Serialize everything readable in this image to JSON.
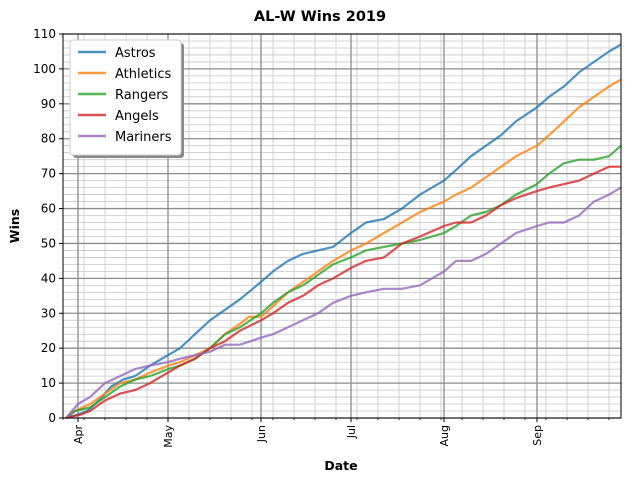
{
  "chart_data": {
    "type": "line",
    "title": "AL-W Wins 2019",
    "xlabel": "Date",
    "ylabel": "Wins",
    "x_axis_type": "date",
    "xlim": [
      "2019-03-27",
      "2019-09-29"
    ],
    "ylim": [
      0,
      110
    ],
    "y_ticks": [
      0,
      10,
      20,
      30,
      40,
      50,
      60,
      70,
      80,
      90,
      100,
      110
    ],
    "x_ticks": [
      {
        "label": "Apr",
        "date": "2019-04-01"
      },
      {
        "label": "May",
        "date": "2019-05-01"
      },
      {
        "label": "Jun",
        "date": "2019-06-01"
      },
      {
        "label": "Jul",
        "date": "2019-07-01"
      },
      {
        "label": "Aug",
        "date": "2019-08-01"
      },
      {
        "label": "Sep",
        "date": "2019-09-01"
      }
    ],
    "grid": true,
    "legend": "top-left",
    "series": [
      {
        "name": "Astros",
        "color": "#1f77b4",
        "points": [
          [
            "2019-03-28",
            0
          ],
          [
            "2019-04-01",
            1
          ],
          [
            "2019-04-04",
            2
          ],
          [
            "2019-04-08",
            5
          ],
          [
            "2019-04-12",
            9
          ],
          [
            "2019-04-16",
            11
          ],
          [
            "2019-04-20",
            12
          ],
          [
            "2019-04-25",
            15
          ],
          [
            "2019-05-01",
            18
          ],
          [
            "2019-05-05",
            20
          ],
          [
            "2019-05-10",
            24
          ],
          [
            "2019-05-15",
            28
          ],
          [
            "2019-05-20",
            31
          ],
          [
            "2019-05-25",
            34
          ],
          [
            "2019-06-01",
            39
          ],
          [
            "2019-06-05",
            42
          ],
          [
            "2019-06-10",
            45
          ],
          [
            "2019-06-15",
            47
          ],
          [
            "2019-06-20",
            48
          ],
          [
            "2019-06-25",
            49
          ],
          [
            "2019-07-01",
            53
          ],
          [
            "2019-07-06",
            56
          ],
          [
            "2019-07-12",
            57
          ],
          [
            "2019-07-18",
            60
          ],
          [
            "2019-07-24",
            64
          ],
          [
            "2019-08-01",
            68
          ],
          [
            "2019-08-05",
            71
          ],
          [
            "2019-08-10",
            75
          ],
          [
            "2019-08-15",
            78
          ],
          [
            "2019-08-20",
            81
          ],
          [
            "2019-08-25",
            85
          ],
          [
            "2019-09-01",
            89
          ],
          [
            "2019-09-05",
            92
          ],
          [
            "2019-09-10",
            95
          ],
          [
            "2019-09-15",
            99
          ],
          [
            "2019-09-20",
            102
          ],
          [
            "2019-09-25",
            105
          ],
          [
            "2019-09-29",
            107
          ]
        ]
      },
      {
        "name": "Athletics",
        "color": "#ff7f0e",
        "points": [
          [
            "2019-03-28",
            0
          ],
          [
            "2019-03-31",
            2
          ],
          [
            "2019-04-05",
            4
          ],
          [
            "2019-04-10",
            7
          ],
          [
            "2019-04-15",
            10
          ],
          [
            "2019-04-20",
            11
          ],
          [
            "2019-04-25",
            13
          ],
          [
            "2019-05-01",
            15
          ],
          [
            "2019-05-05",
            16
          ],
          [
            "2019-05-10",
            18
          ],
          [
            "2019-05-15",
            20
          ],
          [
            "2019-05-20",
            24
          ],
          [
            "2019-05-25",
            27
          ],
          [
            "2019-05-28",
            29
          ],
          [
            "2019-06-01",
            29
          ],
          [
            "2019-06-05",
            32
          ],
          [
            "2019-06-10",
            36
          ],
          [
            "2019-06-15",
            39
          ],
          [
            "2019-06-20",
            42
          ],
          [
            "2019-06-25",
            45
          ],
          [
            "2019-07-01",
            48
          ],
          [
            "2019-07-06",
            50
          ],
          [
            "2019-07-12",
            53
          ],
          [
            "2019-07-18",
            56
          ],
          [
            "2019-07-24",
            59
          ],
          [
            "2019-08-01",
            62
          ],
          [
            "2019-08-05",
            64
          ],
          [
            "2019-08-10",
            66
          ],
          [
            "2019-08-15",
            69
          ],
          [
            "2019-08-20",
            72
          ],
          [
            "2019-08-25",
            75
          ],
          [
            "2019-09-01",
            78
          ],
          [
            "2019-09-05",
            81
          ],
          [
            "2019-09-10",
            85
          ],
          [
            "2019-09-15",
            89
          ],
          [
            "2019-09-20",
            92
          ],
          [
            "2019-09-25",
            95
          ],
          [
            "2019-09-29",
            97
          ]
        ]
      },
      {
        "name": "Rangers",
        "color": "#2ca02c",
        "points": [
          [
            "2019-03-28",
            0
          ],
          [
            "2019-03-31",
            2
          ],
          [
            "2019-04-05",
            3
          ],
          [
            "2019-04-10",
            6
          ],
          [
            "2019-04-15",
            9
          ],
          [
            "2019-04-20",
            11
          ],
          [
            "2019-04-25",
            12
          ],
          [
            "2019-05-01",
            14
          ],
          [
            "2019-05-05",
            15
          ],
          [
            "2019-05-10",
            17
          ],
          [
            "2019-05-15",
            20
          ],
          [
            "2019-05-20",
            24
          ],
          [
            "2019-05-25",
            26
          ],
          [
            "2019-06-01",
            30
          ],
          [
            "2019-06-05",
            33
          ],
          [
            "2019-06-10",
            36
          ],
          [
            "2019-06-15",
            38
          ],
          [
            "2019-06-20",
            41
          ],
          [
            "2019-06-25",
            44
          ],
          [
            "2019-07-01",
            46
          ],
          [
            "2019-07-06",
            48
          ],
          [
            "2019-07-12",
            49
          ],
          [
            "2019-07-18",
            50
          ],
          [
            "2019-07-24",
            51
          ],
          [
            "2019-08-01",
            53
          ],
          [
            "2019-08-05",
            55
          ],
          [
            "2019-08-10",
            58
          ],
          [
            "2019-08-15",
            59
          ],
          [
            "2019-08-20",
            61
          ],
          [
            "2019-08-25",
            64
          ],
          [
            "2019-09-01",
            67
          ],
          [
            "2019-09-05",
            70
          ],
          [
            "2019-09-10",
            73
          ],
          [
            "2019-09-15",
            74
          ],
          [
            "2019-09-20",
            74
          ],
          [
            "2019-09-25",
            75
          ],
          [
            "2019-09-29",
            78
          ]
        ]
      },
      {
        "name": "Angels",
        "color": "#d62728",
        "points": [
          [
            "2019-03-28",
            0
          ],
          [
            "2019-04-02",
            1
          ],
          [
            "2019-04-05",
            2
          ],
          [
            "2019-04-10",
            5
          ],
          [
            "2019-04-15",
            7
          ],
          [
            "2019-04-20",
            8
          ],
          [
            "2019-04-25",
            10
          ],
          [
            "2019-05-01",
            13
          ],
          [
            "2019-05-05",
            15
          ],
          [
            "2019-05-10",
            17
          ],
          [
            "2019-05-15",
            20
          ],
          [
            "2019-05-20",
            22
          ],
          [
            "2019-05-25",
            25
          ],
          [
            "2019-06-01",
            28
          ],
          [
            "2019-06-05",
            30
          ],
          [
            "2019-06-10",
            33
          ],
          [
            "2019-06-15",
            35
          ],
          [
            "2019-06-20",
            38
          ],
          [
            "2019-06-25",
            40
          ],
          [
            "2019-07-01",
            43
          ],
          [
            "2019-07-06",
            45
          ],
          [
            "2019-07-12",
            46
          ],
          [
            "2019-07-18",
            50
          ],
          [
            "2019-07-24",
            52
          ],
          [
            "2019-08-01",
            55
          ],
          [
            "2019-08-05",
            56
          ],
          [
            "2019-08-10",
            56
          ],
          [
            "2019-08-15",
            58
          ],
          [
            "2019-08-20",
            61
          ],
          [
            "2019-08-25",
            63
          ],
          [
            "2019-09-01",
            65
          ],
          [
            "2019-09-05",
            66
          ],
          [
            "2019-09-10",
            67
          ],
          [
            "2019-09-15",
            68
          ],
          [
            "2019-09-20",
            70
          ],
          [
            "2019-09-25",
            72
          ],
          [
            "2019-09-29",
            72
          ]
        ]
      },
      {
        "name": "Mariners",
        "color": "#9467bd",
        "points": [
          [
            "2019-03-28",
            0
          ],
          [
            "2019-03-30",
            2
          ],
          [
            "2019-04-01",
            4
          ],
          [
            "2019-04-05",
            6
          ],
          [
            "2019-04-10",
            10
          ],
          [
            "2019-04-15",
            12
          ],
          [
            "2019-04-20",
            14
          ],
          [
            "2019-04-25",
            15
          ],
          [
            "2019-05-01",
            16
          ],
          [
            "2019-05-05",
            17
          ],
          [
            "2019-05-10",
            18
          ],
          [
            "2019-05-15",
            19
          ],
          [
            "2019-05-20",
            21
          ],
          [
            "2019-05-25",
            21
          ],
          [
            "2019-06-01",
            23
          ],
          [
            "2019-06-05",
            24
          ],
          [
            "2019-06-10",
            26
          ],
          [
            "2019-06-15",
            28
          ],
          [
            "2019-06-20",
            30
          ],
          [
            "2019-06-25",
            33
          ],
          [
            "2019-07-01",
            35
          ],
          [
            "2019-07-06",
            36
          ],
          [
            "2019-07-12",
            37
          ],
          [
            "2019-07-18",
            37
          ],
          [
            "2019-07-24",
            38
          ],
          [
            "2019-08-01",
            42
          ],
          [
            "2019-08-05",
            45
          ],
          [
            "2019-08-10",
            45
          ],
          [
            "2019-08-15",
            47
          ],
          [
            "2019-08-20",
            50
          ],
          [
            "2019-08-25",
            53
          ],
          [
            "2019-09-01",
            55
          ],
          [
            "2019-09-05",
            56
          ],
          [
            "2019-09-10",
            56
          ],
          [
            "2019-09-15",
            58
          ],
          [
            "2019-09-20",
            62
          ],
          [
            "2019-09-25",
            64
          ],
          [
            "2019-09-29",
            66
          ]
        ]
      }
    ]
  }
}
